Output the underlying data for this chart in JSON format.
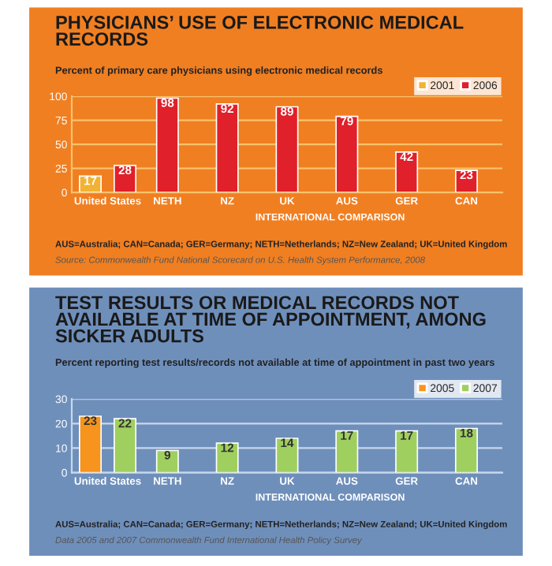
{
  "chart_data": [
    {
      "type": "bar",
      "title": "PHYSICIANS’ USE OF ELECTRONIC MEDICAL RECORDS",
      "subtitle": "Percent of primary care physicians using electronic medical records",
      "xlabel": "INTERNATIONAL COMPARISON",
      "categories": [
        "United States",
        "NETH",
        "NZ",
        "UK",
        "AUS",
        "GER",
        "CAN"
      ],
      "series": [
        {
          "name": "2001",
          "color": "#f2b233",
          "values": [
            17,
            null,
            null,
            null,
            null,
            null,
            null
          ]
        },
        {
          "name": "2006",
          "color": "#e0202a",
          "values": [
            28,
            98,
            92,
            89,
            79,
            42,
            23
          ]
        }
      ],
      "ylim": [
        0,
        100
      ],
      "yticks": [
        0,
        25,
        50,
        75,
        100
      ],
      "grid": "y",
      "legend": "top right",
      "data_labels": true,
      "annotations": [
        "AUS=Australia; CAN=Canada; GER=Germany; NETH=Netherlands; NZ=New Zealand; UK=United Kingdom",
        "Source: Commonwealth Fund National Scorecard on U.S. Health System Performance, 2008"
      ]
    },
    {
      "type": "bar",
      "title": "TEST RESULTS OR MEDICAL RECORDS NOT AVAILABLE AT TIME OF APPOINTMENT, AMONG SICKER ADULTS",
      "subtitle": "Percent reporting test results/records not available at time of appointment in past two years",
      "xlabel": "INTERNATIONAL COMPARISON",
      "categories": [
        "United States",
        "NETH",
        "NZ",
        "UK",
        "AUS",
        "GER",
        "CAN"
      ],
      "series": [
        {
          "name": "2005",
          "color": "#f7941d",
          "values": [
            23,
            null,
            null,
            null,
            null,
            null,
            null
          ]
        },
        {
          "name": "2007",
          "color": "#9fcf5f",
          "values": [
            22,
            9,
            12,
            14,
            17,
            17,
            18
          ]
        }
      ],
      "ylim": [
        0,
        30
      ],
      "yticks": [
        0,
        10,
        20,
        30
      ],
      "grid": "y",
      "legend": "top right",
      "data_labels": true,
      "annotations": [
        "AUS=Australia; CAN=Canada; GER=Germany; NETH=Netherlands; NZ=New Zealand; UK=United Kingdom",
        "Data 2005 and 2007 Commonwealth Fund International Health Policy Survey"
      ]
    }
  ]
}
